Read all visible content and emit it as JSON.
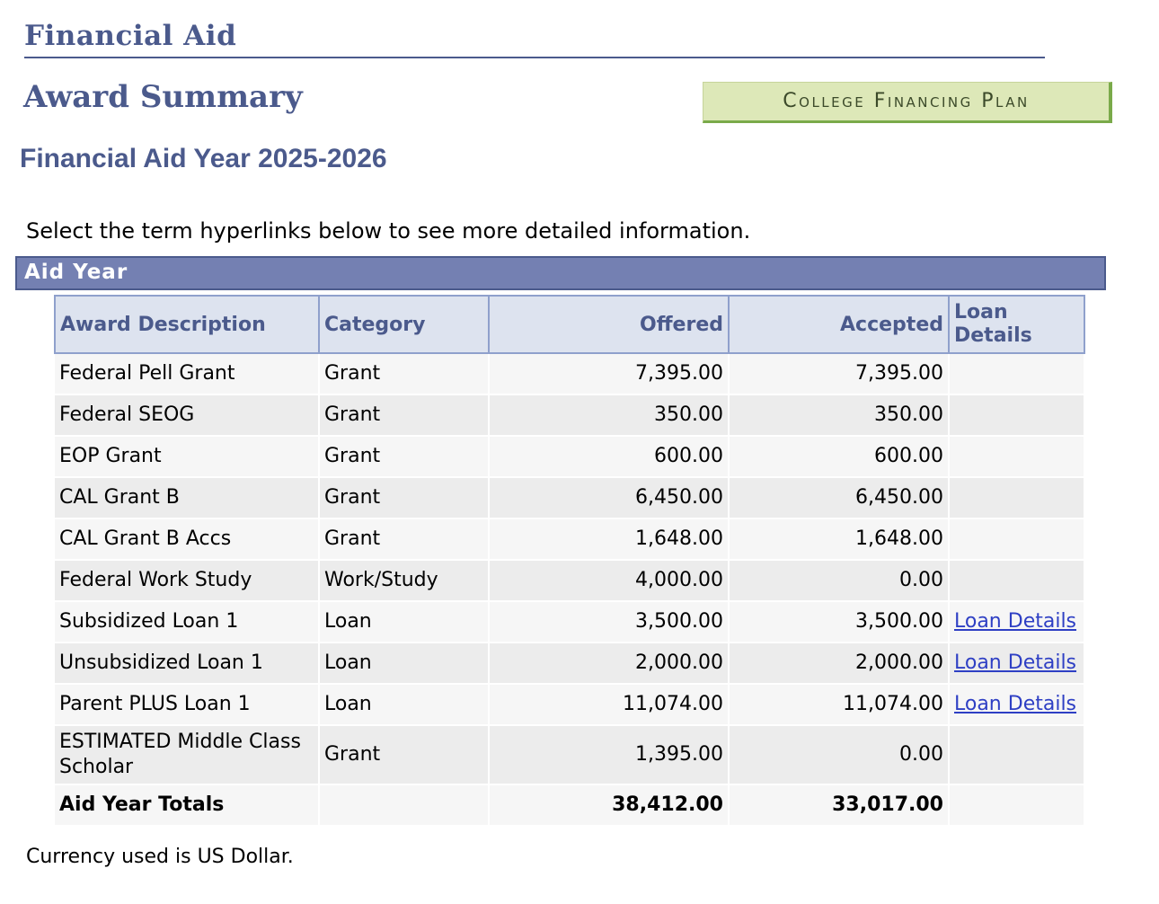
{
  "page": {
    "title": "Financial Aid",
    "subtitle": "Award Summary",
    "aid_year_heading": "Financial Aid Year 2025-2026",
    "instructions": "Select the term hyperlinks below to see more detailed information.",
    "currency_note": "Currency used is US Dollar."
  },
  "toolbar": {
    "college_financing_plan_label": "College Financing Plan"
  },
  "aid_year_group": {
    "label": "Aid Year"
  },
  "table": {
    "headers": {
      "description": "Award Description",
      "category": "Category",
      "offered": "Offered",
      "accepted": "Accepted",
      "loan_details_line1": "Loan",
      "loan_details_line2": "Details"
    },
    "rows": [
      {
        "description": "Federal Pell Grant",
        "category": "Grant",
        "offered": "7,395.00",
        "accepted": "7,395.00",
        "loan_details": ""
      },
      {
        "description": "Federal SEOG",
        "category": "Grant",
        "offered": "350.00",
        "accepted": "350.00",
        "loan_details": ""
      },
      {
        "description": "EOP Grant",
        "category": "Grant",
        "offered": "600.00",
        "accepted": "600.00",
        "loan_details": ""
      },
      {
        "description": "CAL Grant B",
        "category": "Grant",
        "offered": "6,450.00",
        "accepted": "6,450.00",
        "loan_details": ""
      },
      {
        "description": "CAL Grant B Accs",
        "category": "Grant",
        "offered": "1,648.00",
        "accepted": "1,648.00",
        "loan_details": ""
      },
      {
        "description": "Federal Work Study",
        "category": "Work/Study",
        "offered": "4,000.00",
        "accepted": "0.00",
        "loan_details": ""
      },
      {
        "description": "Subsidized Loan 1",
        "category": "Loan",
        "offered": "3,500.00",
        "accepted": "3,500.00",
        "loan_details": "Loan Details"
      },
      {
        "description": "Unsubsidized Loan 1",
        "category": "Loan",
        "offered": "2,000.00",
        "accepted": "2,000.00",
        "loan_details": "Loan Details"
      },
      {
        "description": "Parent PLUS Loan 1",
        "category": "Loan",
        "offered": "11,074.00",
        "accepted": "11,074.00",
        "loan_details": "Loan Details"
      },
      {
        "description_line1": "ESTIMATED Middle Class",
        "description_line2": "Scholar",
        "category": "Grant",
        "offered": "1,395.00",
        "accepted": "0.00",
        "loan_details": ""
      }
    ],
    "totals": {
      "label": "Aid Year Totals",
      "offered": "38,412.00",
      "accepted": "33,017.00"
    }
  },
  "colors": {
    "heading": "#4b5a8c",
    "group_header_bg": "#7480b2",
    "button_bg": "#dde8b8",
    "button_border": "#7aaa4a",
    "link": "#2e3fc4"
  }
}
